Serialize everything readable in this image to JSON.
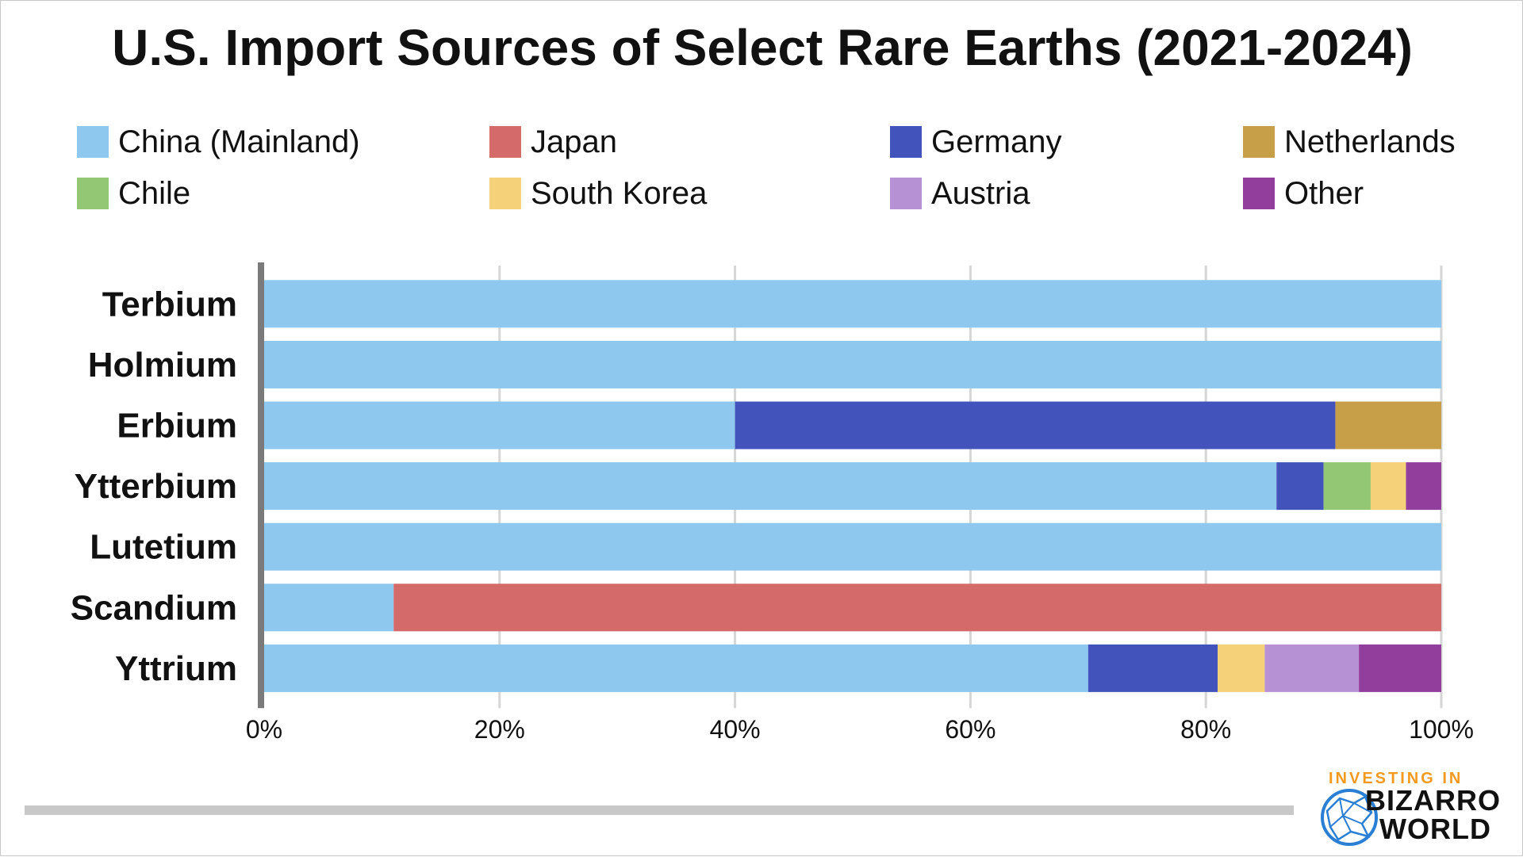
{
  "chart_data": {
    "type": "bar",
    "orientation": "horizontal",
    "stacked": true,
    "title": "U.S. Import Sources of Select Rare Earths (2021-2024)",
    "categories": [
      "Terbium",
      "Holmium",
      "Erbium",
      "Ytterbium",
      "Lutetium",
      "Scandium",
      "Yttrium"
    ],
    "series": [
      {
        "name": "China (Mainland)",
        "color": "#8ec8ee",
        "values": [
          100,
          100,
          40,
          86,
          100,
          11,
          70
        ]
      },
      {
        "name": "Japan",
        "color": "#d46a6a",
        "values": [
          0,
          0,
          0,
          0,
          0,
          89,
          0
        ]
      },
      {
        "name": "Germany",
        "color": "#4254bc",
        "values": [
          0,
          0,
          51,
          4,
          0,
          0,
          11
        ]
      },
      {
        "name": "Netherlands",
        "color": "#c79f48",
        "values": [
          0,
          0,
          9,
          0,
          0,
          0,
          0
        ]
      },
      {
        "name": "Chile",
        "color": "#94c774",
        "values": [
          0,
          0,
          0,
          4,
          0,
          0,
          0
        ]
      },
      {
        "name": "South Korea",
        "color": "#f5d27a",
        "values": [
          0,
          0,
          0,
          3,
          0,
          0,
          4
        ]
      },
      {
        "name": "Austria",
        "color": "#b692d4",
        "values": [
          0,
          0,
          0,
          0,
          0,
          0,
          8
        ]
      },
      {
        "name": "Other",
        "color": "#923e9c",
        "values": [
          0,
          0,
          0,
          3,
          0,
          0,
          7
        ]
      }
    ],
    "x_ticks": [
      "0%",
      "20%",
      "40%",
      "60%",
      "80%",
      "100%"
    ],
    "xlim": [
      0,
      100
    ],
    "grid": true,
    "legend_position": "top"
  },
  "branding": {
    "line1": "INVESTING IN",
    "line2": "BIZARRO",
    "line3": "WORLD",
    "accent_color": "#f39a1e",
    "globe_color": "#2a7fd4"
  }
}
